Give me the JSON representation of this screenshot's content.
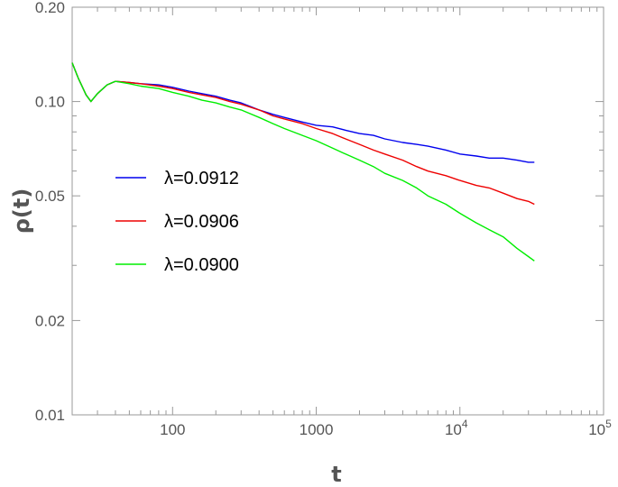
{
  "chart_data": {
    "type": "line",
    "xlabel": "t",
    "ylabel": "ρ(t)",
    "xscale": "log",
    "yscale": "log",
    "xlim": [
      20,
      100000
    ],
    "ylim": [
      0.01,
      0.2
    ],
    "x_ticks": [
      {
        "value": 100,
        "label": "100"
      },
      {
        "value": 1000,
        "label": "1000"
      },
      {
        "value": 10000,
        "label": "10",
        "exp": "4"
      },
      {
        "value": 100000,
        "label": "10",
        "exp": "5"
      }
    ],
    "y_ticks": [
      {
        "value": 0.01,
        "label": "0.01"
      },
      {
        "value": 0.02,
        "label": "0.02"
      },
      {
        "value": 0.05,
        "label": "0.05"
      },
      {
        "value": 0.1,
        "label": "0.10"
      },
      {
        "value": 0.2,
        "label": "0.20"
      }
    ],
    "grid": false,
    "legend_position": "left",
    "series": [
      {
        "name": "λ=0.0912",
        "color": "#0000ee",
        "x": [
          20,
          22,
          25,
          27,
          30,
          35,
          40,
          50,
          60,
          80,
          100,
          130,
          160,
          200,
          250,
          300,
          400,
          500,
          600,
          800,
          1000,
          1300,
          1600,
          2000,
          2500,
          3000,
          4000,
          5000,
          6000,
          8000,
          10000,
          13000,
          16000,
          20000,
          25000,
          30000,
          33000
        ],
        "y": [
          0.133,
          0.119,
          0.105,
          0.1,
          0.106,
          0.113,
          0.116,
          0.115,
          0.114,
          0.113,
          0.111,
          0.108,
          0.106,
          0.104,
          0.101,
          0.099,
          0.094,
          0.091,
          0.089,
          0.086,
          0.084,
          0.083,
          0.081,
          0.079,
          0.078,
          0.076,
          0.074,
          0.073,
          0.072,
          0.07,
          0.068,
          0.067,
          0.066,
          0.066,
          0.065,
          0.064,
          0.064
        ]
      },
      {
        "name": "λ=0.0906",
        "color": "#ee0000",
        "x": [
          20,
          22,
          25,
          27,
          30,
          35,
          40,
          50,
          60,
          80,
          100,
          130,
          160,
          200,
          250,
          300,
          400,
          500,
          600,
          800,
          1000,
          1300,
          1600,
          2000,
          2500,
          3000,
          4000,
          5000,
          6000,
          8000,
          10000,
          13000,
          16000,
          20000,
          25000,
          30000,
          33000
        ],
        "y": [
          0.133,
          0.119,
          0.105,
          0.1,
          0.106,
          0.113,
          0.116,
          0.115,
          0.114,
          0.112,
          0.11,
          0.107,
          0.105,
          0.103,
          0.1,
          0.098,
          0.094,
          0.09,
          0.088,
          0.085,
          0.082,
          0.079,
          0.076,
          0.073,
          0.07,
          0.068,
          0.065,
          0.062,
          0.06,
          0.058,
          0.056,
          0.054,
          0.053,
          0.051,
          0.049,
          0.048,
          0.047
        ]
      },
      {
        "name": "λ=0.0900",
        "color": "#00ee00",
        "x": [
          20,
          22,
          25,
          27,
          30,
          35,
          40,
          50,
          60,
          80,
          100,
          130,
          160,
          200,
          250,
          300,
          400,
          500,
          600,
          800,
          1000,
          1300,
          1600,
          2000,
          2500,
          3000,
          4000,
          5000,
          6000,
          8000,
          10000,
          13000,
          16000,
          20000,
          25000,
          30000,
          33000
        ],
        "y": [
          0.133,
          0.119,
          0.105,
          0.1,
          0.106,
          0.113,
          0.116,
          0.114,
          0.112,
          0.11,
          0.107,
          0.104,
          0.101,
          0.099,
          0.096,
          0.094,
          0.089,
          0.085,
          0.082,
          0.078,
          0.075,
          0.071,
          0.068,
          0.065,
          0.062,
          0.059,
          0.056,
          0.053,
          0.05,
          0.047,
          0.044,
          0.041,
          0.039,
          0.037,
          0.034,
          0.032,
          0.031
        ]
      }
    ]
  }
}
